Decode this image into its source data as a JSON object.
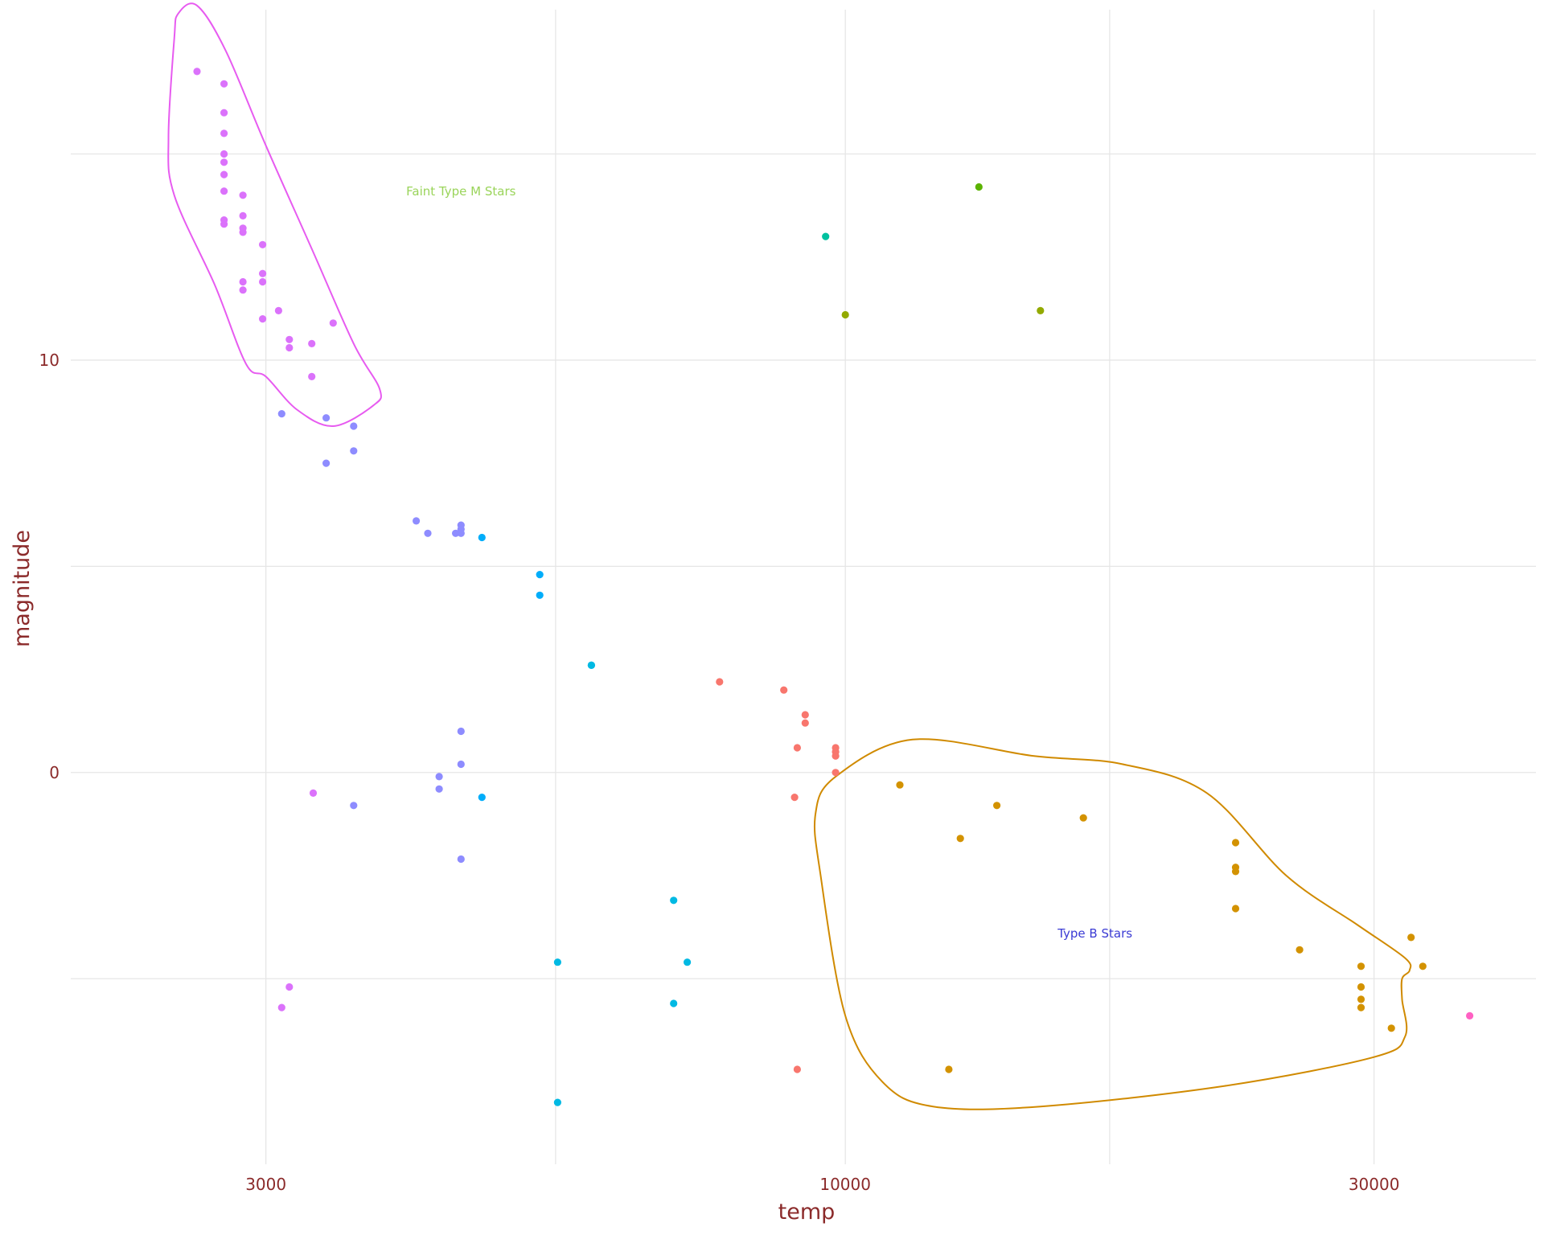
{
  "chart_data": {
    "type": "scatter",
    "xlabel": "temp",
    "ylabel": "magnitude",
    "x_scale": "log",
    "xlim": [
      2000,
      42000
    ],
    "ylim": [
      -9.5,
      18.5
    ],
    "x_ticks": [
      {
        "value": 3000,
        "label": "3000"
      },
      {
        "value": 10000,
        "label": "10000"
      },
      {
        "value": 30000,
        "label": "30000"
      }
    ],
    "y_ticks": [
      {
        "value": 10,
        "label": "10"
      },
      {
        "value": 0,
        "label": "0"
      }
    ],
    "x_minor_grid": [
      5477,
      17320
    ],
    "y_minor_grid": [
      -5,
      5,
      15
    ],
    "grid": true,
    "legend": "none",
    "series": [
      {
        "color": "#F8766D",
        "points": [
          [
            7700,
            2.2
          ],
          [
            8800,
            2.0
          ],
          [
            9200,
            1.4
          ],
          [
            9200,
            1.2
          ],
          [
            9050,
            0.6
          ],
          [
            9800,
            0.6
          ],
          [
            9800,
            0.5
          ],
          [
            9800,
            0.4
          ],
          [
            9000,
            -0.6
          ],
          [
            9800,
            0.0
          ],
          [
            9050,
            -7.2
          ]
        ]
      },
      {
        "color": "#D39200",
        "points": [
          [
            11200,
            -0.3
          ],
          [
            12700,
            -1.6
          ],
          [
            13700,
            -0.8
          ],
          [
            16400,
            -1.1
          ],
          [
            22500,
            -1.7
          ],
          [
            22500,
            -2.3
          ],
          [
            22500,
            -2.4
          ],
          [
            22500,
            -3.3
          ],
          [
            25700,
            -4.3
          ],
          [
            29200,
            -4.7
          ],
          [
            29200,
            -5.2
          ],
          [
            29200,
            -5.5
          ],
          [
            29200,
            -5.7
          ],
          [
            31100,
            -6.2
          ],
          [
            32400,
            -4.0
          ],
          [
            33200,
            -4.7
          ],
          [
            12400,
            -7.2
          ]
        ]
      },
      {
        "color": "#93AA00",
        "points": [
          [
            10000,
            11.1
          ],
          [
            15000,
            11.2
          ]
        ]
      },
      {
        "color": "#5BB300",
        "points": [
          [
            13200,
            14.2
          ]
        ]
      },
      {
        "color": "#00BA38",
        "points": []
      },
      {
        "color": "#00C19F",
        "points": [
          [
            9600,
            13.0
          ]
        ]
      },
      {
        "color": "#00B9E3",
        "points": [
          [
            5900,
            2.6
          ],
          [
            5900,
            2.6
          ],
          [
            7000,
            -3.1
          ],
          [
            7200,
            -4.6
          ],
          [
            7000,
            -5.6
          ],
          [
            5500,
            -4.6
          ],
          [
            5500,
            -8.0
          ]
        ]
      },
      {
        "color": "#00ADFA",
        "points": [
          [
            4700,
            5.7
          ],
          [
            5300,
            4.8
          ],
          [
            5300,
            4.3
          ],
          [
            4700,
            -0.6
          ]
        ]
      },
      {
        "color": "#8E8CFF",
        "points": [
          [
            3400,
            8.6
          ],
          [
            3600,
            8.4
          ],
          [
            3600,
            7.8
          ],
          [
            3100,
            8.7
          ],
          [
            3400,
            7.5
          ],
          [
            4100,
            6.1
          ],
          [
            4200,
            5.8
          ],
          [
            4500,
            5.9
          ],
          [
            4500,
            6.0
          ],
          [
            4500,
            5.8
          ],
          [
            4450,
            5.8
          ],
          [
            4500,
            1.0
          ],
          [
            4500,
            0.2
          ],
          [
            4300,
            -0.1
          ],
          [
            4300,
            -0.4
          ],
          [
            3600,
            -0.8
          ],
          [
            4500,
            -2.1
          ]
        ]
      },
      {
        "color": "#DB72FB",
        "points": [
          [
            2600,
            17.0
          ],
          [
            2750,
            16.7
          ],
          [
            2750,
            16.0
          ],
          [
            2750,
            15.5
          ],
          [
            2750,
            15.0
          ],
          [
            2750,
            14.8
          ],
          [
            2750,
            14.5
          ],
          [
            2750,
            14.1
          ],
          [
            2750,
            13.4
          ],
          [
            2750,
            13.3
          ],
          [
            2860,
            14.0
          ],
          [
            2860,
            13.5
          ],
          [
            2860,
            13.2
          ],
          [
            2860,
            13.1
          ],
          [
            2980,
            12.8
          ],
          [
            2980,
            12.1
          ],
          [
            2980,
            11.9
          ],
          [
            2860,
            11.9
          ],
          [
            2860,
            11.7
          ],
          [
            2980,
            11.0
          ],
          [
            3080,
            11.2
          ],
          [
            3150,
            10.5
          ],
          [
            3150,
            10.3
          ],
          [
            3300,
            10.4
          ],
          [
            3300,
            9.6
          ],
          [
            3450,
            10.9
          ],
          [
            3310,
            -0.5
          ],
          [
            3100,
            -5.7
          ],
          [
            3150,
            -5.2
          ]
        ]
      },
      {
        "color": "#FF61C3",
        "points": [
          [
            36600,
            -5.9
          ]
        ]
      }
    ],
    "hulls": [
      {
        "color": "#E75BF0",
        "points": [
          [
            2500,
            18.4
          ],
          [
            2600,
            18.6
          ],
          [
            2760,
            17.5
          ],
          [
            3000,
            15.2
          ],
          [
            3300,
            12.7
          ],
          [
            3600,
            10.4
          ],
          [
            3800,
            9.3
          ],
          [
            3750,
            8.9
          ],
          [
            3450,
            8.4
          ],
          [
            3200,
            8.8
          ],
          [
            3000,
            9.6
          ],
          [
            2880,
            9.9
          ],
          [
            2700,
            11.8
          ],
          [
            2480,
            14.0
          ],
          [
            2450,
            15.4
          ],
          [
            2480,
            17.8
          ]
        ]
      },
      {
        "color": "#D08A00",
        "points": [
          [
            9800,
            -0.1
          ],
          [
            11500,
            0.8
          ],
          [
            14800,
            0.4
          ],
          [
            17800,
            0.2
          ],
          [
            21200,
            -0.5
          ],
          [
            25000,
            -2.5
          ],
          [
            29000,
            -3.7
          ],
          [
            32000,
            -4.5
          ],
          [
            32300,
            -4.8
          ],
          [
            31800,
            -5.0
          ],
          [
            31800,
            -5.5
          ],
          [
            32000,
            -6.4
          ],
          [
            30000,
            -6.9
          ],
          [
            22000,
            -7.6
          ],
          [
            15000,
            -8.1
          ],
          [
            12000,
            -8.1
          ],
          [
            10800,
            -7.5
          ],
          [
            10000,
            -5.9
          ],
          [
            9500,
            -2.5
          ],
          [
            9400,
            -1.0
          ]
        ]
      }
    ],
    "annotations": [
      {
        "text": "Faint Type M Stars",
        "x": 4500,
        "y": 14.0,
        "color": "#9ad45a"
      },
      {
        "text": "Type B Stars",
        "x": 16800,
        "y": -4.0,
        "color": "#3b3bd4"
      }
    ]
  }
}
